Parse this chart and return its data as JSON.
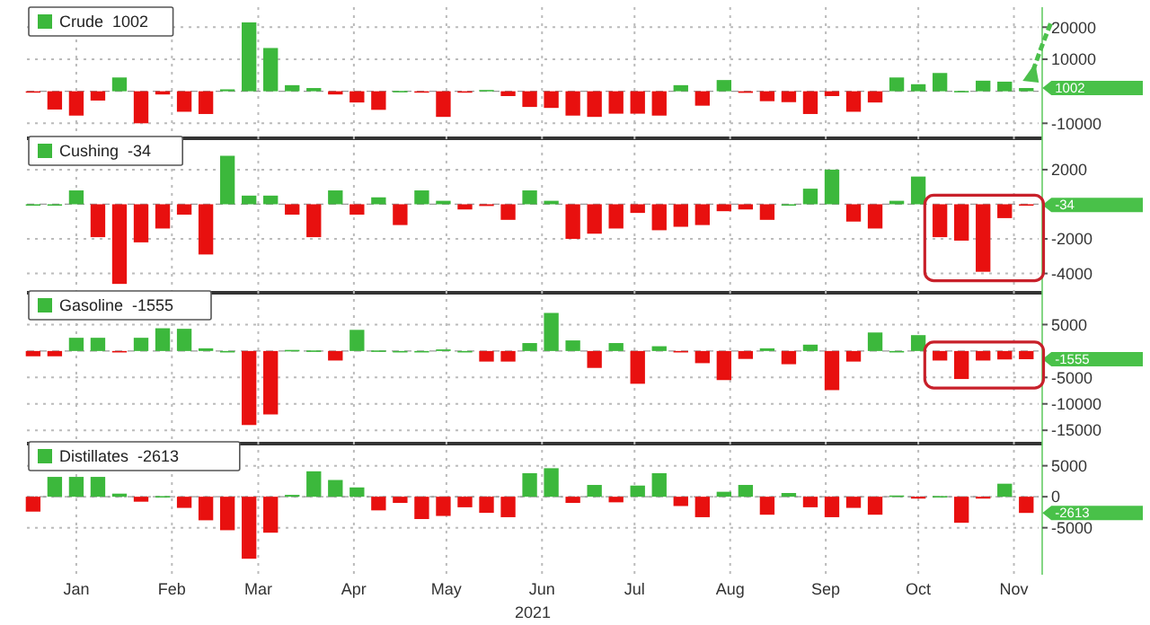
{
  "chart_data": [
    {
      "type": "bar",
      "xlim": [
        "2020-12-16",
        "2021-11-09"
      ],
      "ylim": [
        -13000,
        24000
      ],
      "yticks": [
        -10000,
        10000,
        20000
      ],
      "grid": true,
      "legend": "top left",
      "tick_labels": "y",
      "x": [
        "2020-12-18",
        "2020-12-25",
        "2021-01-01",
        "2021-01-08",
        "2021-01-15",
        "2021-01-22",
        "2021-01-29",
        "2021-02-05",
        "2021-02-12",
        "2021-02-19",
        "2021-02-26",
        "2021-03-05",
        "2021-03-12",
        "2021-03-19",
        "2021-03-26",
        "2021-04-02",
        "2021-04-09",
        "2021-04-16",
        "2021-04-23",
        "2021-04-30",
        "2021-05-07",
        "2021-05-14",
        "2021-05-21",
        "2021-05-28",
        "2021-06-04",
        "2021-06-11",
        "2021-06-18",
        "2021-06-25",
        "2021-07-02",
        "2021-07-09",
        "2021-07-16",
        "2021-07-23",
        "2021-07-30",
        "2021-08-06",
        "2021-08-13",
        "2021-08-20",
        "2021-08-27",
        "2021-09-03",
        "2021-09-10",
        "2021-09-17",
        "2021-09-24",
        "2021-10-01",
        "2021-10-08",
        "2021-10-15",
        "2021-10-22",
        "2021-10-29",
        "2021-11-05"
      ],
      "xticks": [
        {
          "value": "2021-01-01",
          "label": null
        },
        {
          "value": "2021-02-01",
          "label": null
        },
        {
          "value": "2021-03-01",
          "label": null
        },
        {
          "value": "2021-04-01",
          "label": null
        },
        {
          "value": "2021-05-01",
          "label": null
        },
        {
          "value": "2021-06-01",
          "label": null
        },
        {
          "value": "2021-07-01",
          "label": null
        },
        {
          "value": "2021-08-01",
          "label": null
        },
        {
          "value": "2021-09-01",
          "label": null
        },
        {
          "value": "2021-10-01",
          "label": null
        },
        {
          "value": "2021-11-01",
          "label": null
        }
      ],
      "annotations": [
        {
          "text": "1002",
          "x": "2021-11-05",
          "y": 1002
        }
      ],
      "ref_lines": [
        {
          "axis": "y",
          "value": 0,
          "color": "#999999",
          "line_style": "dashed"
        }
      ],
      "series": [
        {
          "name": "Crude  1002",
          "color": "#3cb83c",
          "values": [
            -300,
            -5700,
            -7600,
            -2900,
            4300,
            -10000,
            -1000,
            -6400,
            -7100,
            600,
            21500,
            13500,
            1900,
            1000,
            -1000,
            -3500,
            -5800,
            100,
            -100,
            -8000,
            -200,
            400,
            -1500,
            -4900,
            -5200,
            -7600,
            -8000,
            -7000,
            -7000,
            -7600,
            1900,
            -4500,
            3500,
            -500,
            -3100,
            -3400,
            -7100,
            -1500,
            -6400,
            -3500,
            4300,
            2200,
            5700,
            100,
            3300,
            3000,
            1002
          ],
          "colors": [
            "#e8100f",
            "#e8100f",
            "#e8100f",
            "#e8100f",
            "#3cb83c",
            "#e8100f",
            "#e8100f",
            "#e8100f",
            "#e8100f",
            "#3cb83c",
            "#3cb83c",
            "#3cb83c",
            "#3cb83c",
            "#3cb83c",
            "#e8100f",
            "#e8100f",
            "#e8100f",
            "#3cb83c",
            "#e8100f",
            "#e8100f",
            "#e8100f",
            "#3cb83c",
            "#e8100f",
            "#e8100f",
            "#e8100f",
            "#e8100f",
            "#e8100f",
            "#e8100f",
            "#e8100f",
            "#e8100f",
            "#3cb83c",
            "#e8100f",
            "#3cb83c",
            "#e8100f",
            "#e8100f",
            "#e8100f",
            "#e8100f",
            "#e8100f",
            "#e8100f",
            "#e8100f",
            "#3cb83c",
            "#3cb83c",
            "#3cb83c",
            "#3cb83c",
            "#3cb83c",
            "#3cb83c",
            "#3cb83c"
          ]
        }
      ]
    },
    {
      "type": "bar",
      "xlim": [
        "2020-12-16",
        "2021-11-09"
      ],
      "ylim": [
        -4800,
        3500
      ],
      "yticks": [
        -4000,
        -2000,
        2000
      ],
      "grid": true,
      "legend": "top left",
      "tick_labels": "y",
      "x": [
        "2020-12-18",
        "2020-12-25",
        "2021-01-01",
        "2021-01-08",
        "2021-01-15",
        "2021-01-22",
        "2021-01-29",
        "2021-02-05",
        "2021-02-12",
        "2021-02-19",
        "2021-02-26",
        "2021-03-05",
        "2021-03-12",
        "2021-03-19",
        "2021-03-26",
        "2021-04-02",
        "2021-04-09",
        "2021-04-16",
        "2021-04-23",
        "2021-04-30",
        "2021-05-07",
        "2021-05-14",
        "2021-05-21",
        "2021-05-28",
        "2021-06-04",
        "2021-06-11",
        "2021-06-18",
        "2021-06-25",
        "2021-07-02",
        "2021-07-09",
        "2021-07-16",
        "2021-07-23",
        "2021-07-30",
        "2021-08-06",
        "2021-08-13",
        "2021-08-20",
        "2021-08-27",
        "2021-09-03",
        "2021-09-10",
        "2021-09-17",
        "2021-09-24",
        "2021-10-01",
        "2021-10-08",
        "2021-10-15",
        "2021-10-22",
        "2021-10-29",
        "2021-11-05"
      ],
      "xticks": [
        {
          "value": "2021-01-01",
          "label": null
        },
        {
          "value": "2021-02-01",
          "label": null
        },
        {
          "value": "2021-03-01",
          "label": null
        },
        {
          "value": "2021-04-01",
          "label": null
        },
        {
          "value": "2021-05-01",
          "label": null
        },
        {
          "value": "2021-06-01",
          "label": null
        },
        {
          "value": "2021-07-01",
          "label": null
        },
        {
          "value": "2021-08-01",
          "label": null
        },
        {
          "value": "2021-09-01",
          "label": null
        },
        {
          "value": "2021-10-01",
          "label": null
        },
        {
          "value": "2021-11-01",
          "label": null
        }
      ],
      "annotations": [
        {
          "text": "-34",
          "x": "2021-11-05",
          "y": -34
        }
      ],
      "ref_lines": [
        {
          "axis": "y",
          "value": 0,
          "color": "#999999",
          "line_style": "dashed"
        }
      ],
      "series": [
        {
          "name": "Cushing  -34",
          "color": "#3cb83c",
          "values": [
            0,
            0,
            800,
            -1900,
            -4600,
            -2200,
            -1400,
            -600,
            -2900,
            2800,
            500,
            500,
            -600,
            -1900,
            800,
            -600,
            400,
            -1200,
            800,
            200,
            -300,
            -100,
            -900,
            800,
            200,
            -2000,
            -1700,
            -1400,
            -500,
            -1500,
            -1300,
            -1200,
            -400,
            -300,
            -900,
            0,
            900,
            2000,
            -1000,
            -1400,
            200,
            1600,
            -1900,
            -2100,
            -3900,
            -800,
            -34
          ],
          "colors": [
            "#3cb83c",
            "#3cb83c",
            "#3cb83c",
            "#e8100f",
            "#e8100f",
            "#e8100f",
            "#e8100f",
            "#e8100f",
            "#e8100f",
            "#3cb83c",
            "#3cb83c",
            "#3cb83c",
            "#e8100f",
            "#e8100f",
            "#3cb83c",
            "#e8100f",
            "#3cb83c",
            "#e8100f",
            "#3cb83c",
            "#3cb83c",
            "#e8100f",
            "#e8100f",
            "#e8100f",
            "#3cb83c",
            "#3cb83c",
            "#e8100f",
            "#e8100f",
            "#e8100f",
            "#e8100f",
            "#e8100f",
            "#e8100f",
            "#e8100f",
            "#e8100f",
            "#e8100f",
            "#e8100f",
            "#3cb83c",
            "#3cb83c",
            "#3cb83c",
            "#e8100f",
            "#e8100f",
            "#3cb83c",
            "#3cb83c",
            "#e8100f",
            "#e8100f",
            "#e8100f",
            "#e8100f",
            "#e8100f"
          ]
        }
      ]
    },
    {
      "type": "bar",
      "xlim": [
        "2020-12-16",
        "2021-11-09"
      ],
      "ylim": [
        -16500,
        10000
      ],
      "yticks": [
        -15000,
        -10000,
        -5000,
        5000
      ],
      "grid": true,
      "legend": "top left",
      "tick_labels": "y",
      "x": [
        "2020-12-18",
        "2020-12-25",
        "2021-01-01",
        "2021-01-08",
        "2021-01-15",
        "2021-01-22",
        "2021-01-29",
        "2021-02-05",
        "2021-02-12",
        "2021-02-19",
        "2021-02-26",
        "2021-03-05",
        "2021-03-12",
        "2021-03-19",
        "2021-03-26",
        "2021-04-02",
        "2021-04-09",
        "2021-04-16",
        "2021-04-23",
        "2021-04-30",
        "2021-05-07",
        "2021-05-14",
        "2021-05-21",
        "2021-05-28",
        "2021-06-04",
        "2021-06-11",
        "2021-06-18",
        "2021-06-25",
        "2021-07-02",
        "2021-07-09",
        "2021-07-16",
        "2021-07-23",
        "2021-07-30",
        "2021-08-06",
        "2021-08-13",
        "2021-08-20",
        "2021-08-27",
        "2021-09-03",
        "2021-09-10",
        "2021-09-17",
        "2021-09-24",
        "2021-10-01",
        "2021-10-08",
        "2021-10-15",
        "2021-10-22",
        "2021-10-29",
        "2021-11-05"
      ],
      "xticks": [
        {
          "value": "2021-01-01",
          "label": null
        },
        {
          "value": "2021-02-01",
          "label": null
        },
        {
          "value": "2021-03-01",
          "label": null
        },
        {
          "value": "2021-04-01",
          "label": null
        },
        {
          "value": "2021-05-01",
          "label": null
        },
        {
          "value": "2021-06-01",
          "label": null
        },
        {
          "value": "2021-07-01",
          "label": null
        },
        {
          "value": "2021-08-01",
          "label": null
        },
        {
          "value": "2021-09-01",
          "label": null
        },
        {
          "value": "2021-10-01",
          "label": null
        },
        {
          "value": "2021-11-01",
          "label": null
        }
      ],
      "annotations": [
        {
          "text": "-1555",
          "x": "2021-11-05",
          "y": -1555
        }
      ],
      "ref_lines": [
        {
          "axis": "y",
          "value": 0,
          "color": "#999999",
          "line_style": "dashed"
        }
      ],
      "series": [
        {
          "name": "Gasoline  -1555",
          "color": "#3cb83c",
          "values": [
            -1000,
            -1000,
            2500,
            2500,
            -200,
            2500,
            4300,
            4200,
            500,
            0,
            -14000,
            -12000,
            200,
            100,
            -1800,
            4000,
            100,
            0,
            0,
            300,
            0,
            -2000,
            -2000,
            1500,
            7200,
            2000,
            -3200,
            1500,
            -6200,
            900,
            -100,
            -2300,
            -5500,
            -1500,
            500,
            -2500,
            1200,
            -7400,
            -2000,
            3500,
            0,
            3000,
            -1800,
            -5300,
            -1800,
            -1600,
            -1555
          ],
          "colors": [
            "#e8100f",
            "#e8100f",
            "#3cb83c",
            "#3cb83c",
            "#e8100f",
            "#3cb83c",
            "#3cb83c",
            "#3cb83c",
            "#3cb83c",
            "#3cb83c",
            "#e8100f",
            "#e8100f",
            "#3cb83c",
            "#3cb83c",
            "#e8100f",
            "#3cb83c",
            "#3cb83c",
            "#3cb83c",
            "#3cb83c",
            "#3cb83c",
            "#3cb83c",
            "#e8100f",
            "#e8100f",
            "#3cb83c",
            "#3cb83c",
            "#3cb83c",
            "#e8100f",
            "#3cb83c",
            "#e8100f",
            "#3cb83c",
            "#e8100f",
            "#e8100f",
            "#e8100f",
            "#e8100f",
            "#3cb83c",
            "#e8100f",
            "#3cb83c",
            "#e8100f",
            "#e8100f",
            "#3cb83c",
            "#3cb83c",
            "#3cb83c",
            "#e8100f",
            "#e8100f",
            "#e8100f",
            "#e8100f",
            "#e8100f"
          ]
        }
      ]
    },
    {
      "type": "bar",
      "xlim": [
        "2020-12-16",
        "2021-11-09"
      ],
      "ylim": [
        -12000,
        7700
      ],
      "yticks": [
        -5000,
        0,
        5000
      ],
      "grid": true,
      "legend": "top left",
      "xlabel": "2021",
      "x": [
        "2020-12-18",
        "2020-12-25",
        "2021-01-01",
        "2021-01-08",
        "2021-01-15",
        "2021-01-22",
        "2021-01-29",
        "2021-02-05",
        "2021-02-12",
        "2021-02-19",
        "2021-02-26",
        "2021-03-05",
        "2021-03-12",
        "2021-03-19",
        "2021-03-26",
        "2021-04-02",
        "2021-04-09",
        "2021-04-16",
        "2021-04-23",
        "2021-04-30",
        "2021-05-07",
        "2021-05-14",
        "2021-05-21",
        "2021-05-28",
        "2021-06-04",
        "2021-06-11",
        "2021-06-18",
        "2021-06-25",
        "2021-07-02",
        "2021-07-09",
        "2021-07-16",
        "2021-07-23",
        "2021-07-30",
        "2021-08-06",
        "2021-08-13",
        "2021-08-20",
        "2021-08-27",
        "2021-09-03",
        "2021-09-10",
        "2021-09-17",
        "2021-09-24",
        "2021-10-01",
        "2021-10-08",
        "2021-10-15",
        "2021-10-22",
        "2021-10-29",
        "2021-11-05"
      ],
      "xticks": [
        {
          "value": "2021-01-01",
          "label": "Jan"
        },
        {
          "value": "2021-02-01",
          "label": "Feb"
        },
        {
          "value": "2021-03-01",
          "label": "Mar"
        },
        {
          "value": "2021-04-01",
          "label": "Apr"
        },
        {
          "value": "2021-05-01",
          "label": "May"
        },
        {
          "value": "2021-06-01",
          "label": "Jun"
        },
        {
          "value": "2021-07-01",
          "label": "Jul"
        },
        {
          "value": "2021-08-01",
          "label": "Aug"
        },
        {
          "value": "2021-09-01",
          "label": "Sep"
        },
        {
          "value": "2021-10-01",
          "label": "Oct"
        },
        {
          "value": "2021-11-01",
          "label": "Nov"
        }
      ],
      "annotations": [
        {
          "text": "-2613",
          "x": "2021-11-05",
          "y": -2613
        }
      ],
      "ref_lines": [
        {
          "axis": "y",
          "value": 0,
          "color": "#999999",
          "line_style": "dashed"
        }
      ],
      "series": [
        {
          "name": "Distillates  -2613",
          "color": "#3cb83c",
          "values": [
            -2400,
            3200,
            3200,
            3200,
            500,
            -800,
            100,
            -1800,
            -3800,
            -5400,
            -10000,
            -5800,
            300,
            4100,
            2700,
            1500,
            -2200,
            -1000,
            -3600,
            -3100,
            -1700,
            -2600,
            -3300,
            3800,
            4600,
            -1000,
            1900,
            -900,
            1800,
            3800,
            -1500,
            -3300,
            800,
            1900,
            -2900,
            600,
            -1700,
            -3300,
            -1800,
            -2900,
            200,
            -300,
            100,
            -4200,
            -300,
            2100,
            -2613
          ],
          "colors": [
            "#e8100f",
            "#3cb83c",
            "#3cb83c",
            "#3cb83c",
            "#3cb83c",
            "#e8100f",
            "#3cb83c",
            "#e8100f",
            "#e8100f",
            "#e8100f",
            "#e8100f",
            "#e8100f",
            "#3cb83c",
            "#3cb83c",
            "#3cb83c",
            "#3cb83c",
            "#e8100f",
            "#e8100f",
            "#e8100f",
            "#e8100f",
            "#e8100f",
            "#e8100f",
            "#e8100f",
            "#3cb83c",
            "#3cb83c",
            "#e8100f",
            "#3cb83c",
            "#e8100f",
            "#3cb83c",
            "#3cb83c",
            "#e8100f",
            "#e8100f",
            "#3cb83c",
            "#3cb83c",
            "#e8100f",
            "#3cb83c",
            "#e8100f",
            "#e8100f",
            "#e8100f",
            "#e8100f",
            "#3cb83c",
            "#e8100f",
            "#3cb83c",
            "#e8100f",
            "#e8100f",
            "#3cb83c",
            "#e8100f"
          ]
        }
      ]
    }
  ]
}
